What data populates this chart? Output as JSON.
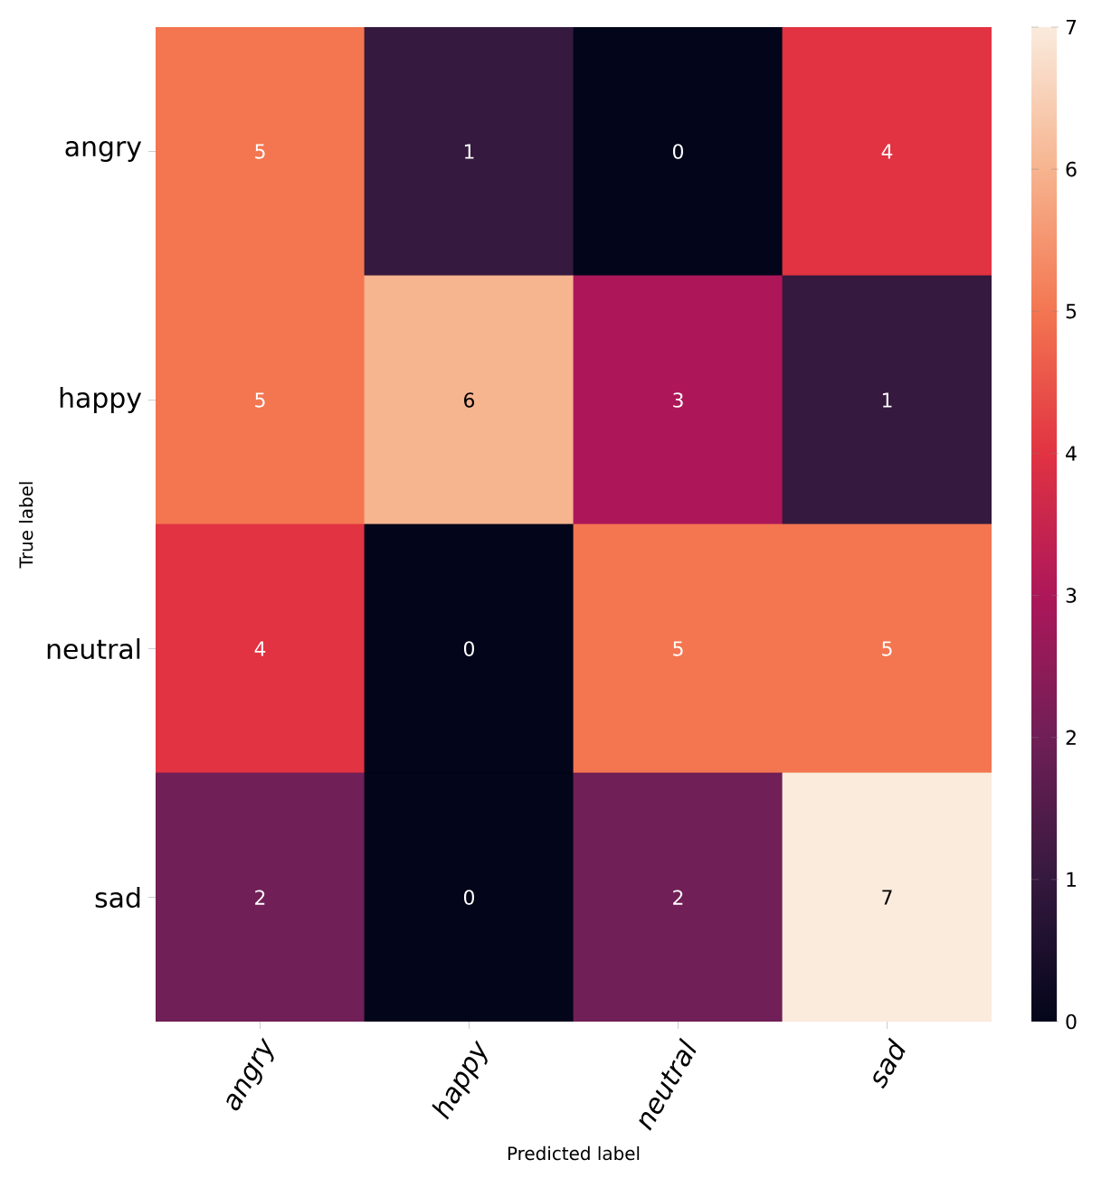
{
  "chart_data": {
    "type": "heatmap",
    "xlabel": "Predicted label",
    "ylabel": "True label",
    "categories": [
      "angry",
      "happy",
      "neutral",
      "sad"
    ],
    "y_categories": [
      "angry",
      "happy",
      "neutral",
      "sad"
    ],
    "cells": [
      [
        5,
        1,
        0,
        4
      ],
      [
        5,
        6,
        3,
        1
      ],
      [
        4,
        0,
        5,
        5
      ],
      [
        2,
        0,
        2,
        7
      ]
    ],
    "data_labels": true,
    "clim": [
      0,
      7
    ],
    "cticks": [
      0,
      1,
      2,
      3,
      4,
      5,
      6,
      7
    ]
  }
}
